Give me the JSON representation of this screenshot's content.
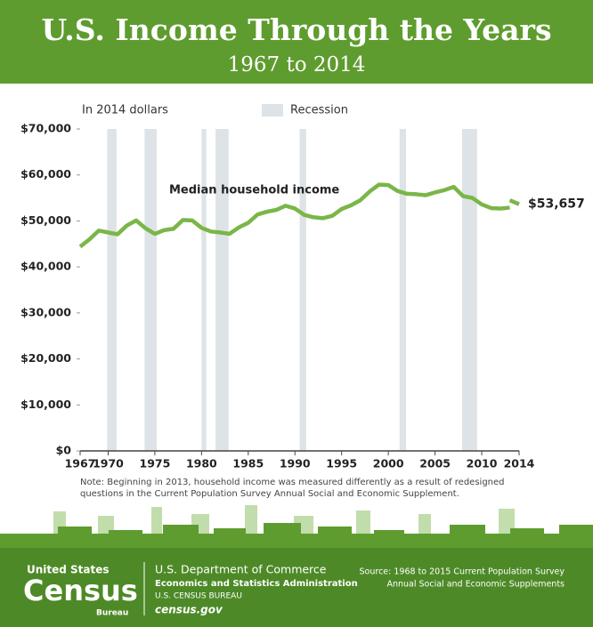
{
  "header": {
    "title": "U.S. Income Through the Years",
    "subtitle": "1967 to 2014"
  },
  "chart_data": {
    "type": "line",
    "y_label": "In 2014 dollars",
    "legend": {
      "name": "Recession",
      "color": "#dde3e6"
    },
    "recessions": [
      [
        1969.9,
        1970.9
      ],
      [
        1973.9,
        1975.2
      ],
      [
        1980.0,
        1980.5
      ],
      [
        1981.5,
        1982.9
      ],
      [
        1990.5,
        1991.2
      ],
      [
        2001.2,
        2001.9
      ],
      [
        2007.9,
        2009.5
      ]
    ],
    "x": [
      1967,
      1968,
      1969,
      1970,
      1971,
      1972,
      1973,
      1974,
      1975,
      1976,
      1977,
      1978,
      1979,
      1980,
      1981,
      1982,
      1983,
      1984,
      1985,
      1986,
      1987,
      1988,
      1989,
      1990,
      1991,
      1992,
      1993,
      1994,
      1995,
      1996,
      1997,
      1998,
      1999,
      2000,
      2001,
      2002,
      2003,
      2004,
      2005,
      2006,
      2007,
      2008,
      2009,
      2010,
      2011,
      2012,
      2013,
      2013,
      2013,
      2014
    ],
    "series": [
      {
        "name": "Median household income",
        "color": "#7ab648",
        "values": [
          44400,
          46000,
          47900,
          47500,
          47100,
          49000,
          50100,
          48400,
          47200,
          48000,
          48300,
          50200,
          50100,
          48500,
          47700,
          47500,
          47200,
          48600,
          49600,
          51400,
          52000,
          52400,
          53300,
          52700,
          51300,
          50800,
          50600,
          51100,
          52600,
          53400,
          54500,
          56400,
          57900,
          57800,
          56500,
          55900,
          55800,
          55600,
          56200,
          56700,
          57400,
          55400,
          55000,
          53600,
          52800,
          52700,
          52900,
          null,
          54500,
          53657
        ],
        "value_labels": [
          null,
          null,
          null,
          null,
          null,
          null,
          null,
          null,
          null,
          null,
          null,
          null,
          null,
          null,
          null,
          null,
          null,
          null,
          null,
          null,
          null,
          null,
          null,
          null,
          null,
          null,
          null,
          null,
          null,
          null,
          null,
          null,
          null,
          null,
          null,
          null,
          null,
          null,
          null,
          null,
          null,
          null,
          null,
          null,
          null,
          null,
          null,
          null,
          null,
          "$53,657"
        ]
      }
    ],
    "xlim": [
      1967,
      2014
    ],
    "xticks": [
      1967,
      1970,
      1975,
      1980,
      1985,
      1990,
      1995,
      2000,
      2005,
      2010,
      2014
    ],
    "ylim": [
      0,
      70000
    ],
    "yticks": [
      {
        "value": 0,
        "label": "$0"
      },
      {
        "value": 10000,
        "label": "$10,000"
      },
      {
        "value": 20000,
        "label": "$20,000"
      },
      {
        "value": 30000,
        "label": "$30,000"
      },
      {
        "value": 40000,
        "label": "$40,000"
      },
      {
        "value": 50000,
        "label": "$50,000"
      },
      {
        "value": 60000,
        "label": "$60,000"
      },
      {
        "value": 70000,
        "label": "$70,000"
      }
    ],
    "note": [
      "Note: Beginning in 2013, household income was measured differently as a result of redesigned",
      "questions in the Current Population Survey Annual Social and Economic Supplement."
    ]
  },
  "footer": {
    "logo_top": "United States",
    "logo_main": "Census",
    "logo_bottom": "Bureau",
    "department": "U.S. Department of Commerce",
    "administration": "Economics and Statistics Administration",
    "bureau": "U.S. CENSUS BUREAU",
    "website": "census.gov",
    "source": [
      "Source: 1968 to 2015 Current Population Survey",
      "Annual Social and Economic Supplements"
    ]
  }
}
